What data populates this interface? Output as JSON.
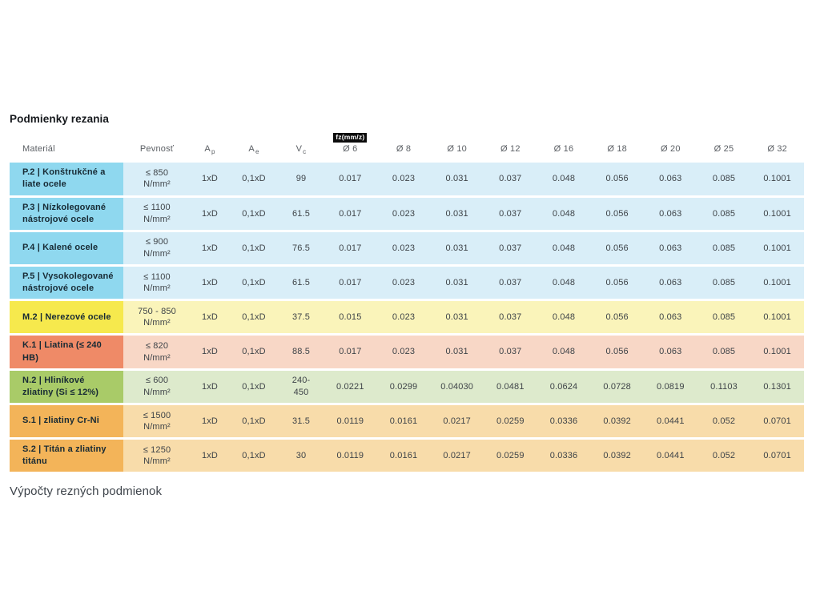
{
  "page": {
    "title": "Podmienky rezania",
    "footer": "Výpočty rezných podmienok"
  },
  "table": {
    "fz_badge": "fz(mm/z)",
    "headers": {
      "material": "Materiál",
      "strength": "Pevnosť",
      "ap_base": "A",
      "ap_sub": "p",
      "ae_base": "A",
      "ae_sub": "e",
      "vc_base": "V",
      "vc_sub": "c",
      "diameters": [
        "Ø 6",
        "Ø 8",
        "Ø 10",
        "Ø 12",
        "Ø 16",
        "Ø 18",
        "Ø 20",
        "Ø 25",
        "Ø 32"
      ]
    },
    "group_colors": {
      "P": {
        "label": "#8FD8EF",
        "row": "#D9EEF8"
      },
      "M": {
        "label": "#F6E94D",
        "row": "#FAF4BA"
      },
      "K": {
        "label": "#EF8A67",
        "row": "#F8D7C6"
      },
      "N": {
        "label": "#A9CB68",
        "row": "#DDEACC"
      },
      "S": {
        "label": "#F3B459",
        "row": "#F8DCAA"
      }
    },
    "rows": [
      {
        "group": "P",
        "material": "P.2 | Konštrukčné a\nliate ocele",
        "strength": "≤ 850\nN/mm²",
        "ap": "1xD",
        "ae": "0,1xD",
        "vc": "99",
        "fz": [
          "0.017",
          "0.023",
          "0.031",
          "0.037",
          "0.048",
          "0.056",
          "0.063",
          "0.085",
          "0.1001"
        ]
      },
      {
        "group": "P",
        "material": "P.3 | Nízkolegované\nnástrojové ocele",
        "strength": "≤ 1100\nN/mm²",
        "ap": "1xD",
        "ae": "0,1xD",
        "vc": "61.5",
        "fz": [
          "0.017",
          "0.023",
          "0.031",
          "0.037",
          "0.048",
          "0.056",
          "0.063",
          "0.085",
          "0.1001"
        ]
      },
      {
        "group": "P",
        "material": "P.4 | Kalené ocele",
        "strength": "≤ 900\nN/mm²",
        "ap": "1xD",
        "ae": "0,1xD",
        "vc": "76.5",
        "fz": [
          "0.017",
          "0.023",
          "0.031",
          "0.037",
          "0.048",
          "0.056",
          "0.063",
          "0.085",
          "0.1001"
        ]
      },
      {
        "group": "P",
        "material": "P.5 | Vysokolegované\nnástrojové ocele",
        "strength": "≤ 1100\nN/mm²",
        "ap": "1xD",
        "ae": "0,1xD",
        "vc": "61.5",
        "fz": [
          "0.017",
          "0.023",
          "0.031",
          "0.037",
          "0.048",
          "0.056",
          "0.063",
          "0.085",
          "0.1001"
        ]
      },
      {
        "group": "M",
        "material": "M.2 | Nerezové ocele",
        "strength": "750 - 850\nN/mm²",
        "ap": "1xD",
        "ae": "0,1xD",
        "vc": "37.5",
        "fz": [
          "0.015",
          "0.023",
          "0.031",
          "0.037",
          "0.048",
          "0.056",
          "0.063",
          "0.085",
          "0.1001"
        ]
      },
      {
        "group": "K",
        "material": "K.1 | Liatina (≤ 240\nHB)",
        "strength": "≤ 820\nN/mm²",
        "ap": "1xD",
        "ae": "0,1xD",
        "vc": "88.5",
        "fz": [
          "0.017",
          "0.023",
          "0.031",
          "0.037",
          "0.048",
          "0.056",
          "0.063",
          "0.085",
          "0.1001"
        ]
      },
      {
        "group": "N",
        "material": "N.2 | Hliníkové\nzliatiny (Si ≤ 12%)",
        "strength": "≤ 600\nN/mm²",
        "ap": "1xD",
        "ae": "0,1xD",
        "vc": "240-\n450",
        "fz": [
          "0.0221",
          "0.0299",
          "0.04030",
          "0.0481",
          "0.0624",
          "0.0728",
          "0.0819",
          "0.1103",
          "0.1301"
        ]
      },
      {
        "group": "S",
        "material": "S.1 | zliatiny Cr-Ni",
        "strength": "≤ 1500\nN/mm²",
        "ap": "1xD",
        "ae": "0,1xD",
        "vc": "31.5",
        "fz": [
          "0.0119",
          "0.0161",
          "0.0217",
          "0.0259",
          "0.0336",
          "0.0392",
          "0.0441",
          "0.052",
          "0.0701"
        ]
      },
      {
        "group": "S",
        "material": "S.2 | Titán a zliatiny\ntitánu",
        "strength": "≤ 1250\nN/mm²",
        "ap": "1xD",
        "ae": "0,1xD",
        "vc": "30",
        "fz": [
          "0.0119",
          "0.0161",
          "0.0217",
          "0.0259",
          "0.0336",
          "0.0392",
          "0.0441",
          "0.052",
          "0.0701"
        ]
      }
    ]
  },
  "chart_data": {
    "type": "table",
    "title": "Podmienky rezania",
    "columns": [
      "Materiál",
      "Pevnosť",
      "Ap",
      "Ae",
      "Vc",
      "fz(mm/z) Ø 6",
      "Ø 8",
      "Ø 10",
      "Ø 12",
      "Ø 16",
      "Ø 18",
      "Ø 20",
      "Ø 25",
      "Ø 32"
    ],
    "rows": [
      [
        "P.2 | Konštrukčné a liate ocele",
        "≤ 850 N/mm²",
        "1xD",
        "0,1xD",
        "99",
        "0.017",
        "0.023",
        "0.031",
        "0.037",
        "0.048",
        "0.056",
        "0.063",
        "0.085",
        "0.1001"
      ],
      [
        "P.3 | Nízkolegované nástrojové ocele",
        "≤ 1100 N/mm²",
        "1xD",
        "0,1xD",
        "61.5",
        "0.017",
        "0.023",
        "0.031",
        "0.037",
        "0.048",
        "0.056",
        "0.063",
        "0.085",
        "0.1001"
      ],
      [
        "P.4 | Kalené ocele",
        "≤ 900 N/mm²",
        "1xD",
        "0,1xD",
        "76.5",
        "0.017",
        "0.023",
        "0.031",
        "0.037",
        "0.048",
        "0.056",
        "0.063",
        "0.085",
        "0.1001"
      ],
      [
        "P.5 | Vysokolegované nástrojové ocele",
        "≤ 1100 N/mm²",
        "1xD",
        "0,1xD",
        "61.5",
        "0.017",
        "0.023",
        "0.031",
        "0.037",
        "0.048",
        "0.056",
        "0.063",
        "0.085",
        "0.1001"
      ],
      [
        "M.2 | Nerezové ocele",
        "750 - 850 N/mm²",
        "1xD",
        "0,1xD",
        "37.5",
        "0.015",
        "0.023",
        "0.031",
        "0.037",
        "0.048",
        "0.056",
        "0.063",
        "0.085",
        "0.1001"
      ],
      [
        "K.1 | Liatina (≤ 240 HB)",
        "≤ 820 N/mm²",
        "1xD",
        "0,1xD",
        "88.5",
        "0.017",
        "0.023",
        "0.031",
        "0.037",
        "0.048",
        "0.056",
        "0.063",
        "0.085",
        "0.1001"
      ],
      [
        "N.2 | Hliníkové zliatiny (Si ≤ 12%)",
        "≤ 600 N/mm²",
        "1xD",
        "0,1xD",
        "240-450",
        "0.0221",
        "0.0299",
        "0.04030",
        "0.0481",
        "0.0624",
        "0.0728",
        "0.0819",
        "0.1103",
        "0.1301"
      ],
      [
        "S.1 | zliatiny Cr-Ni",
        "≤ 1500 N/mm²",
        "1xD",
        "0,1xD",
        "31.5",
        "0.0119",
        "0.0161",
        "0.0217",
        "0.0259",
        "0.0336",
        "0.0392",
        "0.0441",
        "0.052",
        "0.0701"
      ],
      [
        "S.2 | Titán a zliatiny titánu",
        "≤ 1250 N/mm²",
        "1xD",
        "0,1xD",
        "30",
        "0.0119",
        "0.0161",
        "0.0217",
        "0.0259",
        "0.0336",
        "0.0392",
        "0.0441",
        "0.052",
        "0.0701"
      ]
    ]
  }
}
